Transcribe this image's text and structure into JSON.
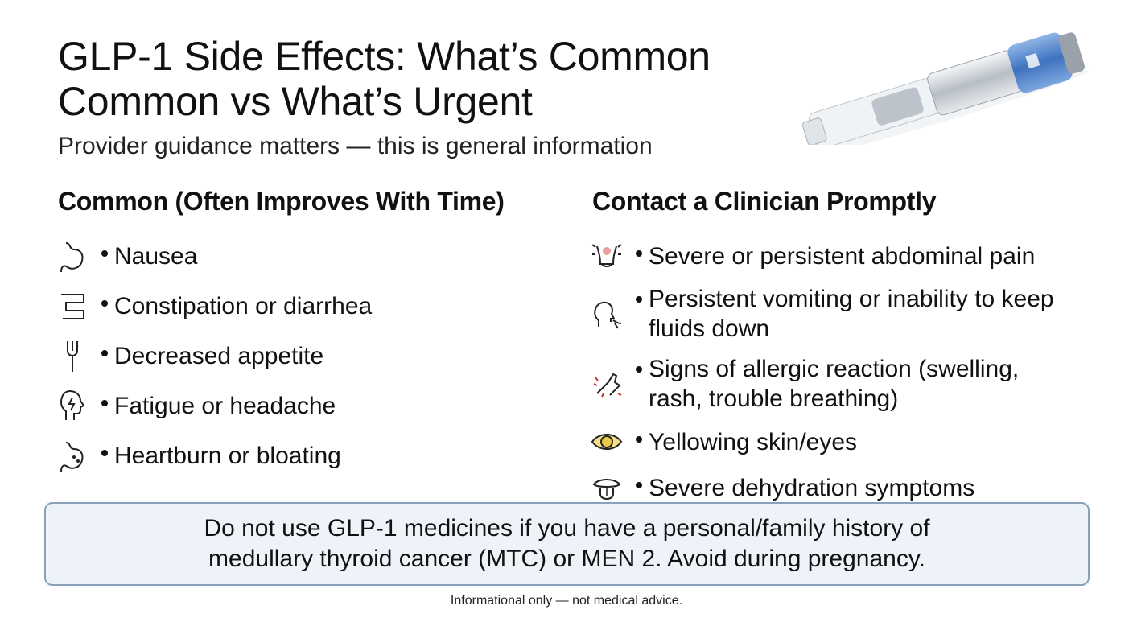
{
  "header": {
    "title_lines": [
      "GLP-1 Side Effects: What’s Common",
      "Common vs What’s Urgent"
    ],
    "subtitle": "Provider guidance matters — this is general information"
  },
  "columns": [
    {
      "heading": "Common (Often Improves With Time)",
      "items": [
        "Nausea",
        "Constipation or diarrhea",
        "Decreased appetite",
        "Fatigue or headache",
        "Heartburn or bloating"
      ]
    },
    {
      "heading": "Contact a Clinician Promptly",
      "items": [
        "Severe or persistent abdominal pain",
        "Persistent vomiting or inability to keep fluids down",
        "Signs of allergic reaction (swelling, rash, trouble breathing)",
        "Yellowing skin/eyes",
        "Severe dehydration symptoms"
      ]
    }
  ],
  "warning": {
    "lines": [
      "Do not use GLP-1 medicines if you have a personal/family history of",
      "medullary thyroid cancer (MTC) or MEN 2. Avoid during pregnancy."
    ]
  },
  "footer": "Informational only — not medical advice."
}
